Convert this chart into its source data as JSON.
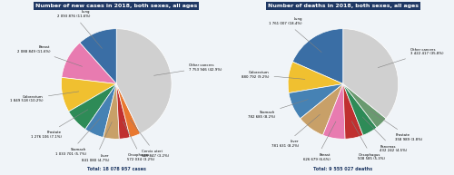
{
  "left": {
    "title": "Number of new cases in 2018, both sexes, all ages",
    "total_text": "Total: 18 078 957 cases",
    "labels": [
      "Lung",
      "Breast",
      "Colorectum",
      "Prostate",
      "Stomach",
      "Liver",
      "Oesophagus",
      "Cervix uteri",
      "Other cancers"
    ],
    "values": [
      2093876,
      2088849,
      1849518,
      1276106,
      1033701,
      841080,
      572034,
      569847,
      7753946
    ],
    "pcts": [
      "11.6%",
      "11.6%",
      "10.2%",
      "7.1%",
      "5.7%",
      "4.7%",
      "3.2%",
      "3.2%",
      "42.9%"
    ],
    "counts": [
      "2 093 876",
      "2 088 849",
      "1 849 518",
      "1 276 106",
      "1 033 701",
      "841 080",
      "572 034",
      "569 847",
      "7 753 946"
    ],
    "colors": [
      "#3A6EA5",
      "#E87BB0",
      "#F0C030",
      "#2E8B57",
      "#4682B4",
      "#C8A068",
      "#C03030",
      "#E87830",
      "#D0D0D0"
    ],
    "label_sides": [
      "right",
      "right",
      "right",
      "right",
      "right",
      "right",
      "left",
      "left",
      "left"
    ],
    "startangle": 90
  },
  "right": {
    "title": "Number of deaths in 2018, both sexes, all ages",
    "total_text": "Total: 9 555 027 deaths",
    "labels": [
      "Lung",
      "Colorectum",
      "Stomach",
      "Liver",
      "Breast",
      "Oesophagus",
      "Pancreas",
      "Prostate",
      "Other cancers"
    ],
    "values": [
      1761007,
      880792,
      782685,
      781631,
      626679,
      508585,
      432242,
      358989,
      3422417
    ],
    "pcts": [
      "18.4%",
      "9.2%",
      "8.2%",
      "8.2%",
      "6.6%",
      "5.3%",
      "4.5%",
      "3.8%",
      "35.8%"
    ],
    "counts": [
      "1 761 007",
      "880 792",
      "782 685",
      "781 631",
      "626 679",
      "508 585",
      "432 242",
      "358 989",
      "3 422 417"
    ],
    "colors": [
      "#3A6EA5",
      "#F0C030",
      "#4682B4",
      "#C8A068",
      "#E87BB0",
      "#C03030",
      "#2E8B57",
      "#6A9A70",
      "#D0D0D0"
    ],
    "startangle": 90
  },
  "title_bg": "#1F3864",
  "title_color": "#FFFFFF",
  "background_color": "#F0F4F8"
}
